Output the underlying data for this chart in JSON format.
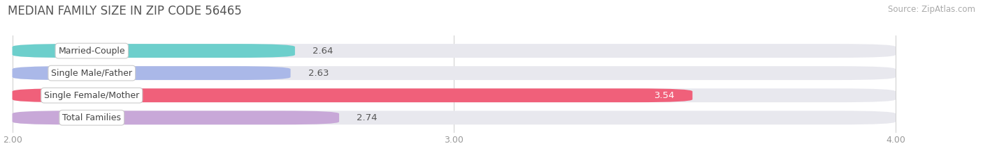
{
  "title": "MEDIAN FAMILY SIZE IN ZIP CODE 56465",
  "source": "Source: ZipAtlas.com",
  "categories": [
    "Married-Couple",
    "Single Male/Father",
    "Single Female/Mother",
    "Total Families"
  ],
  "values": [
    2.64,
    2.63,
    3.54,
    2.74
  ],
  "bar_colors": [
    "#6dcfcc",
    "#aab8e8",
    "#f0607a",
    "#c8a8d8"
  ],
  "bar_bg_color": "#e8e8ee",
  "x_min": 2.0,
  "x_max": 4.0,
  "x_ticks": [
    2.0,
    3.0,
    4.0
  ],
  "x_tick_labels": [
    "2.00",
    "3.00",
    "4.00"
  ],
  "background_color": "#ffffff",
  "bar_height": 0.62,
  "title_fontsize": 12,
  "source_fontsize": 8.5,
  "tick_fontsize": 9,
  "bar_label_fontsize": 9.5,
  "cat_label_fontsize": 9
}
